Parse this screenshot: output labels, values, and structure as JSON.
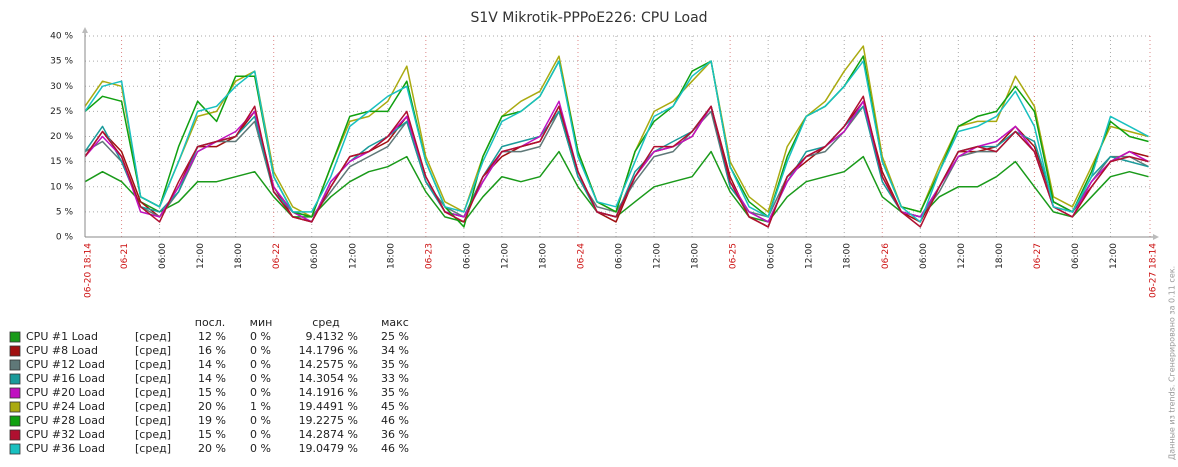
{
  "chart_data": {
    "type": "line",
    "title": "S1V Mikrotik-PPPoE226: CPU Load",
    "side_note": "Данные из trends. Сгенерировано за 0.11 сек.",
    "ylim": [
      0,
      40
    ],
    "yticks": [
      {
        "value": 0,
        "label": "0 %"
      },
      {
        "value": 5,
        "label": "5 %"
      },
      {
        "value": 10,
        "label": "10 %"
      },
      {
        "value": 15,
        "label": "15 %"
      },
      {
        "value": 20,
        "label": "20 %"
      },
      {
        "value": 25,
        "label": "25 %"
      },
      {
        "value": 30,
        "label": "30 %"
      },
      {
        "value": 35,
        "label": "35 %"
      },
      {
        "value": 40,
        "label": "40 %"
      }
    ],
    "xlim": [
      "06-20 18:14",
      "06-27 18:14"
    ],
    "xticks": [
      {
        "value": "06-20 18:14",
        "label": "06-20 18:14"
      },
      {
        "value": "06-21 00:00",
        "label": "06-21"
      },
      {
        "value": "06-21 06:00",
        "label": "06:00"
      },
      {
        "value": "06-21 12:00",
        "label": "12:00"
      },
      {
        "value": "06-21 18:00",
        "label": "18:00"
      },
      {
        "value": "06-22 00:00",
        "label": "06-22"
      },
      {
        "value": "06-22 06:00",
        "label": "06:00"
      },
      {
        "value": "06-22 12:00",
        "label": "12:00"
      },
      {
        "value": "06-22 18:00",
        "label": "18:00"
      },
      {
        "value": "06-23 00:00",
        "label": "06-23"
      },
      {
        "value": "06-23 06:00",
        "label": "06:00"
      },
      {
        "value": "06-23 12:00",
        "label": "12:00"
      },
      {
        "value": "06-23 18:00",
        "label": "18:00"
      },
      {
        "value": "06-24 00:00",
        "label": "06-24"
      },
      {
        "value": "06-24 06:00",
        "label": "06:00"
      },
      {
        "value": "06-24 12:00",
        "label": "12:00"
      },
      {
        "value": "06-24 18:00",
        "label": "18:00"
      },
      {
        "value": "06-25 00:00",
        "label": "06-25"
      },
      {
        "value": "06-25 06:00",
        "label": "06:00"
      },
      {
        "value": "06-25 12:00",
        "label": "12:00"
      },
      {
        "value": "06-25 18:00",
        "label": "18:00"
      },
      {
        "value": "06-26 00:00",
        "label": "06-26"
      },
      {
        "value": "06-26 06:00",
        "label": "06:00"
      },
      {
        "value": "06-26 12:00",
        "label": "12:00"
      },
      {
        "value": "06-26 18:00",
        "label": "18:00"
      },
      {
        "value": "06-27 00:00",
        "label": "06-27"
      },
      {
        "value": "06-27 06:00",
        "label": "06:00"
      },
      {
        "value": "06-27 12:00",
        "label": "12:00"
      },
      {
        "value": "06-27 18:14",
        "label": "06-27 18:14"
      }
    ],
    "grid": true,
    "x": [
      "06-20 18:14",
      "06-20 21:00",
      "06-21 00:00",
      "06-21 03:00",
      "06-21 06:00",
      "06-21 09:00",
      "06-21 12:00",
      "06-21 15:00",
      "06-21 18:00",
      "06-21 21:00",
      "06-22 00:00",
      "06-22 03:00",
      "06-22 06:00",
      "06-22 09:00",
      "06-22 12:00",
      "06-22 15:00",
      "06-22 18:00",
      "06-22 21:00",
      "06-23 00:00",
      "06-23 03:00",
      "06-23 06:00",
      "06-23 09:00",
      "06-23 12:00",
      "06-23 15:00",
      "06-23 18:00",
      "06-23 21:00",
      "06-24 00:00",
      "06-24 03:00",
      "06-24 06:00",
      "06-24 09:00",
      "06-24 12:00",
      "06-24 15:00",
      "06-24 18:00",
      "06-24 21:00",
      "06-25 00:00",
      "06-25 03:00",
      "06-25 06:00",
      "06-25 09:00",
      "06-25 12:00",
      "06-25 15:00",
      "06-25 18:00",
      "06-25 21:00",
      "06-26 00:00",
      "06-26 03:00",
      "06-26 06:00",
      "06-26 09:00",
      "06-26 12:00",
      "06-26 15:00",
      "06-26 18:00",
      "06-26 21:00",
      "06-27 00:00",
      "06-27 03:00",
      "06-27 06:00",
      "06-27 09:00",
      "06-27 12:00",
      "06-27 15:00",
      "06-27 18:00"
    ],
    "series": [
      {
        "name": "CPU #1 Load",
        "color": "#1a9a1a",
        "values": [
          11,
          13,
          11,
          7,
          5,
          7,
          11,
          11,
          12,
          13,
          8,
          4,
          4,
          8,
          11,
          13,
          14,
          16,
          9,
          4,
          3,
          8,
          12,
          11,
          12,
          17,
          10,
          5,
          4,
          7,
          10,
          11,
          12,
          17,
          9,
          4,
          3,
          8,
          11,
          12,
          13,
          16,
          8,
          5,
          4,
          8,
          10,
          10,
          12,
          15,
          10,
          5,
          4,
          8,
          12,
          13,
          12
        ]
      },
      {
        "name": "CPU #8 Load",
        "color": "#a01010",
        "values": [
          16,
          21,
          17,
          7,
          4,
          10,
          18,
          18,
          20,
          25,
          10,
          4,
          3,
          10,
          16,
          17,
          19,
          24,
          12,
          5,
          4,
          12,
          16,
          18,
          19,
          26,
          13,
          5,
          3,
          12,
          17,
          18,
          20,
          26,
          12,
          4,
          2,
          12,
          15,
          18,
          22,
          27,
          13,
          5,
          3,
          10,
          17,
          17,
          18,
          22,
          18,
          7,
          5,
          10,
          15,
          17,
          16
        ]
      },
      {
        "name": "CPU #12 Load",
        "color": "#5f7878",
        "values": [
          17,
          19,
          15,
          6,
          4,
          9,
          17,
          19,
          19,
          23,
          9,
          5,
          4,
          9,
          14,
          16,
          18,
          23,
          11,
          6,
          4,
          11,
          17,
          17,
          18,
          25,
          12,
          6,
          5,
          11,
          16,
          17,
          21,
          25,
          10,
          5,
          4,
          12,
          16,
          17,
          21,
          26,
          12,
          5,
          4,
          9,
          16,
          17,
          17,
          21,
          17,
          6,
          5,
          11,
          16,
          16,
          14
        ]
      },
      {
        "name": "CPU #16 Load",
        "color": "#1a9a9a",
        "values": [
          17,
          22,
          15,
          6,
          5,
          9,
          18,
          19,
          20,
          24,
          9,
          5,
          3,
          11,
          15,
          18,
          20,
          23,
          11,
          5,
          4,
          12,
          18,
          19,
          20,
          25,
          12,
          5,
          4,
          13,
          17,
          19,
          21,
          26,
          10,
          5,
          3,
          11,
          17,
          18,
          22,
          26,
          11,
          5,
          4,
          10,
          17,
          18,
          18,
          21,
          19,
          7,
          5,
          12,
          16,
          15,
          14
        ]
      },
      {
        "name": "CPU #20 Load",
        "color": "#c010c0",
        "values": [
          16,
          20,
          16,
          5,
          4,
          10,
          17,
          19,
          21,
          25,
          10,
          5,
          3,
          11,
          15,
          17,
          20,
          24,
          12,
          5,
          4,
          11,
          17,
          18,
          20,
          27,
          13,
          5,
          4,
          12,
          17,
          18,
          20,
          26,
          11,
          5,
          3,
          11,
          16,
          18,
          21,
          27,
          12,
          5,
          4,
          10,
          16,
          18,
          19,
          22,
          17,
          6,
          4,
          11,
          15,
          17,
          15
        ]
      },
      {
        "name": "CPU #24 Load",
        "color": "#aaaa10",
        "values": [
          26,
          31,
          30,
          8,
          6,
          15,
          24,
          25,
          31,
          33,
          13,
          6,
          4,
          14,
          23,
          24,
          27,
          34,
          16,
          7,
          5,
          16,
          24,
          27,
          29,
          36,
          17,
          7,
          5,
          17,
          25,
          27,
          31,
          35,
          15,
          8,
          5,
          18,
          24,
          27,
          33,
          38,
          16,
          6,
          5,
          14,
          22,
          23,
          23,
          32,
          26,
          8,
          6,
          14,
          22,
          21,
          20
        ]
      },
      {
        "name": "CPU #28 Load",
        "color": "#10a010",
        "values": [
          25,
          28,
          27,
          8,
          6,
          18,
          27,
          23,
          32,
          32,
          12,
          5,
          4,
          14,
          24,
          25,
          25,
          31,
          15,
          6,
          2,
          16,
          24,
          25,
          28,
          35,
          17,
          7,
          5,
          17,
          23,
          26,
          33,
          35,
          14,
          7,
          4,
          16,
          24,
          26,
          30,
          36,
          15,
          6,
          5,
          13,
          22,
          24,
          25,
          30,
          25,
          7,
          5,
          13,
          23,
          20,
          19
        ]
      },
      {
        "name": "CPU #32 Load",
        "color": "#b01030",
        "values": [
          16,
          21,
          16,
          6,
          3,
          11,
          18,
          19,
          20,
          26,
          9,
          4,
          3,
          10,
          16,
          17,
          20,
          25,
          12,
          5,
          3,
          12,
          17,
          18,
          19,
          26,
          13,
          5,
          4,
          12,
          18,
          18,
          21,
          26,
          11,
          4,
          2,
          12,
          16,
          18,
          22,
          28,
          12,
          5,
          2,
          10,
          17,
          18,
          17,
          21,
          17,
          6,
          4,
          10,
          15,
          16,
          15
        ]
      },
      {
        "name": "CPU #36 Load",
        "color": "#18c0c0",
        "values": [
          25,
          30,
          31,
          8,
          6,
          15,
          25,
          26,
          30,
          33,
          12,
          5,
          5,
          12,
          22,
          25,
          28,
          30,
          15,
          6,
          5,
          15,
          23,
          25,
          28,
          35,
          16,
          7,
          6,
          15,
          24,
          26,
          32,
          35,
          14,
          6,
          4,
          15,
          24,
          26,
          30,
          35,
          15,
          6,
          3,
          13,
          21,
          22,
          24,
          29,
          22,
          6,
          5,
          12,
          24,
          22,
          20
        ]
      }
    ],
    "legend": {
      "columns": [
        "посл.",
        "мин",
        "сред",
        "макс"
      ],
      "rows": [
        {
          "func": "[сред]",
          "cells": [
            "12 %",
            "0 %",
            "9.4132 %",
            "25 %"
          ]
        },
        {
          "func": "[сред]",
          "cells": [
            "16 %",
            "0 %",
            "14.1796 %",
            "34 %"
          ]
        },
        {
          "func": "[сред]",
          "cells": [
            "14 %",
            "0 %",
            "14.2575 %",
            "35 %"
          ]
        },
        {
          "func": "[сред]",
          "cells": [
            "14 %",
            "0 %",
            "14.3054 %",
            "33 %"
          ]
        },
        {
          "func": "[сред]",
          "cells": [
            "15 %",
            "0 %",
            "14.1916 %",
            "35 %"
          ]
        },
        {
          "func": "[сред]",
          "cells": [
            "20 %",
            "1 %",
            "19.4491 %",
            "45 %"
          ]
        },
        {
          "func": "[сред]",
          "cells": [
            "19 %",
            "0 %",
            "19.2275 %",
            "46 %"
          ]
        },
        {
          "func": "[сред]",
          "cells": [
            "15 %",
            "0 %",
            "14.2874 %",
            "36 %"
          ]
        },
        {
          "func": "[сред]",
          "cells": [
            "20 %",
            "0 %",
            "19.0479 %",
            "46 %"
          ]
        }
      ]
    }
  }
}
